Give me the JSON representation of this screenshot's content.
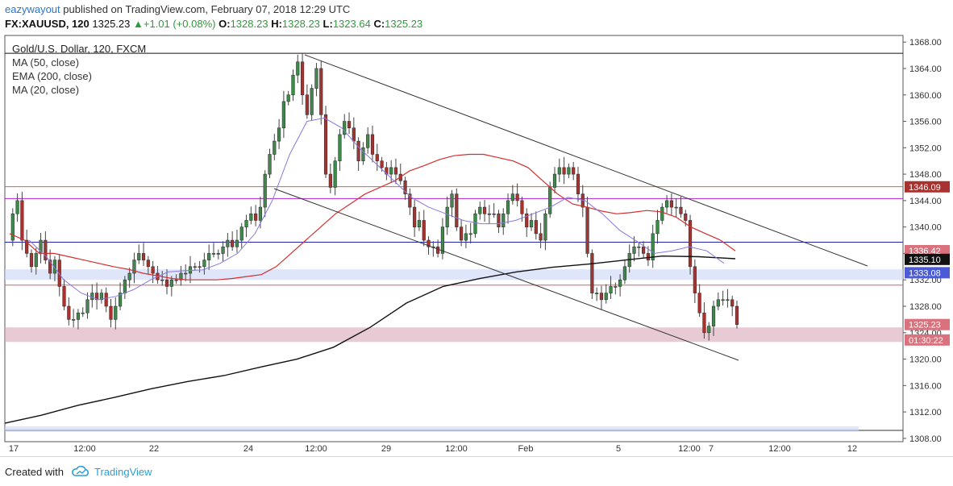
{
  "header": {
    "author": "eazywayout",
    "published_text": "published on TradingView.com, February 07, 2018 12:29 UTC",
    "symbol": "FX:XAUUSD, 120",
    "last": "1325.23",
    "change": "+1.01 (+0.08%)",
    "o_label": "O:",
    "o": "1328.23",
    "h_label": "H:",
    "h": "1328.23",
    "l_label": "L:",
    "l": "1323.64",
    "c_label": "C:",
    "c": "1325.23"
  },
  "legend": {
    "title": "Gold/U.S. Dollar, 120, FXCM",
    "items": [
      "MA (50, close)",
      "EMA (200, close)",
      "MA (20, close)"
    ]
  },
  "footer": {
    "created": "Created with",
    "brand": "TradingView",
    "logo_icon": "tradingview-cloud-icon"
  },
  "colors": {
    "up": "#3d8a4a",
    "down": "#a8322f",
    "ma50": "#d32f2f",
    "ema200": "#111111",
    "ma20": "#8a78e0",
    "h_red": "#e05a5a",
    "h_purple": "#b026c8",
    "h_blue": "#2222aa",
    "zone_pink": "#d9a7b8",
    "zone_blue": "#ccd6f5"
  },
  "chart_data": {
    "type": "candlestick",
    "y_range": [
      1307.5,
      1369.0
    ],
    "y_ticks": [
      "1368.00",
      "1364.00",
      "1360.00",
      "1356.00",
      "1352.00",
      "1348.00",
      "1344.00",
      "1340.00",
      "1336.00",
      "1332.00",
      "1328.00",
      "1324.00",
      "1320.00",
      "1316.00",
      "1312.00",
      "1308.00"
    ],
    "x_ticks": [
      "17",
      "12:00",
      "22",
      "24",
      "12:00",
      "29",
      "12:00",
      "Feb",
      "5",
      "12:00",
      "7",
      "12:00",
      "12"
    ],
    "price_labels": [
      {
        "text": "1346.09",
        "value": 1346.09,
        "color": "#a8322f"
      },
      {
        "text": "1336.42",
        "value": 1336.42,
        "color": "#d9727c"
      },
      {
        "text": "1335.10",
        "value": 1335.1,
        "color": "#111111"
      },
      {
        "text": "1333.08",
        "value": 1333.08,
        "color": "#4b5bd6"
      },
      {
        "text": "1325.23",
        "value": 1325.23,
        "color": "#d9727c"
      },
      {
        "text": "01:30:22",
        "value": 1322.9,
        "color": "#d9727c"
      }
    ],
    "horizontal_lines": [
      {
        "value": 1366.3,
        "color": "#111111"
      },
      {
        "value": 1346.1,
        "color": "#e05a5a"
      },
      {
        "value": 1344.3,
        "color": "#b026c8"
      },
      {
        "value": 1337.7,
        "color": "#2222aa"
      },
      {
        "value": 1331.2,
        "color": "#e05a5a"
      }
    ],
    "zones": [
      {
        "from": 1324.8,
        "to": 1322.6,
        "color": "#d9a7b8"
      },
      {
        "from": 1333.6,
        "to": 1332.0,
        "color": "#ccd6f5"
      },
      {
        "from": 1309.8,
        "to": 1309.0,
        "color": "#ccd6f5"
      }
    ],
    "trend_lines": [
      {
        "from": [
          0,
          1366.0
        ],
        "to": [
          1,
          1333.5
        ],
        "x_frac": [
          0.346,
          0.99
        ]
      },
      {
        "from": [
          0,
          1344.8
        ],
        "to": [
          1,
          1319.4
        ],
        "x_frac": [
          0.3,
          0.83
        ]
      }
    ],
    "candles_count": 182,
    "candles_ohlc_note": "approximate path",
    "close_path": [
      1338,
      1342,
      1344,
      1338,
      1336,
      1334,
      1336,
      1338,
      1335,
      1333,
      1335,
      1331,
      1328,
      1326,
      1326,
      1327,
      1327,
      1329,
      1330,
      1329,
      1330,
      1328,
      1326,
      1328,
      1330,
      1332,
      1333,
      1335,
      1336,
      1335,
      1334,
      1333,
      1332,
      1332,
      1331,
      1332,
      1332,
      1333,
      1333,
      1334,
      1334,
      1334,
      1335,
      1336,
      1336,
      1336,
      1337,
      1338,
      1337,
      1338,
      1340,
      1341,
      1342,
      1341,
      1343,
      1348,
      1351,
      1353,
      1355,
      1359,
      1360,
      1363,
      1365,
      1360,
      1357,
      1361,
      1364,
      1357,
      1348,
      1346,
      1350,
      1354,
      1356,
      1355,
      1353,
      1350,
      1352,
      1354,
      1351,
      1350,
      1349,
      1348,
      1349,
      1348,
      1347,
      1345,
      1343,
      1340,
      1341,
      1338,
      1337,
      1337,
      1336,
      1340,
      1343,
      1345,
      1340,
      1338,
      1339,
      1339,
      1342,
      1343,
      1342,
      1342,
      1342,
      1340,
      1342,
      1344,
      1345,
      1344,
      1342,
      1340,
      1341,
      1339,
      1338,
      1342,
      1346,
      1348,
      1349,
      1348,
      1349,
      1348,
      1345,
      1343,
      1336,
      1330,
      1330,
      1329,
      1330,
      1331,
      1331,
      1332,
      1334,
      1336,
      1337,
      1337,
      1336,
      1335,
      1339,
      1341,
      1343,
      1344,
      1343,
      1343,
      1342,
      1341,
      1334,
      1330,
      1327,
      1324,
      1325,
      1328,
      1329,
      1329,
      1329,
      1328,
      1325.23
    ],
    "ma50_path": [
      1339,
      1338,
      1336,
      1336,
      1335.5,
      1335,
      1334.5,
      1334,
      1333.6,
      1333,
      1332.6,
      1332.2,
      1332,
      1332,
      1332,
      1332.2,
      1332.5,
      1332.8,
      1334,
      1336,
      1338,
      1340,
      1342,
      1343.5,
      1345,
      1346,
      1347,
      1348.5,
      1349.3,
      1350.2,
      1350.8,
      1351,
      1351,
      1350.5,
      1350,
      1349,
      1347,
      1345,
      1343.5,
      1343,
      1342.4,
      1342,
      1342.2,
      1342.5,
      1342.3,
      1341.5,
      1340,
      1339,
      1338,
      1336.4
    ],
    "ma20_path": [
      1338,
      1335.5,
      1332,
      1330,
      1329,
      1329.5,
      1330.5,
      1332,
      1333.2,
      1333.4,
      1333.5,
      1334.5,
      1336,
      1339,
      1344,
      1351,
      1356,
      1356.5,
      1355,
      1352,
      1349.5,
      1347,
      1344.5,
      1343,
      1342,
      1341,
      1340.5,
      1340.5,
      1341,
      1342,
      1343,
      1344.5,
      1344,
      1342,
      1339.5,
      1337.8,
      1336,
      1336.4,
      1337,
      1336.4,
      1334.5
    ],
    "ema200_path": [
      1310.3,
      1311.5,
      1313,
      1314.2,
      1315.5,
      1316.6,
      1317.5,
      1318.8,
      1320,
      1321.8,
      1324.8,
      1328.5,
      1331,
      1332.2,
      1333.2,
      1333.9,
      1334.4,
      1335,
      1335.6,
      1335.5,
      1335.2
    ]
  }
}
